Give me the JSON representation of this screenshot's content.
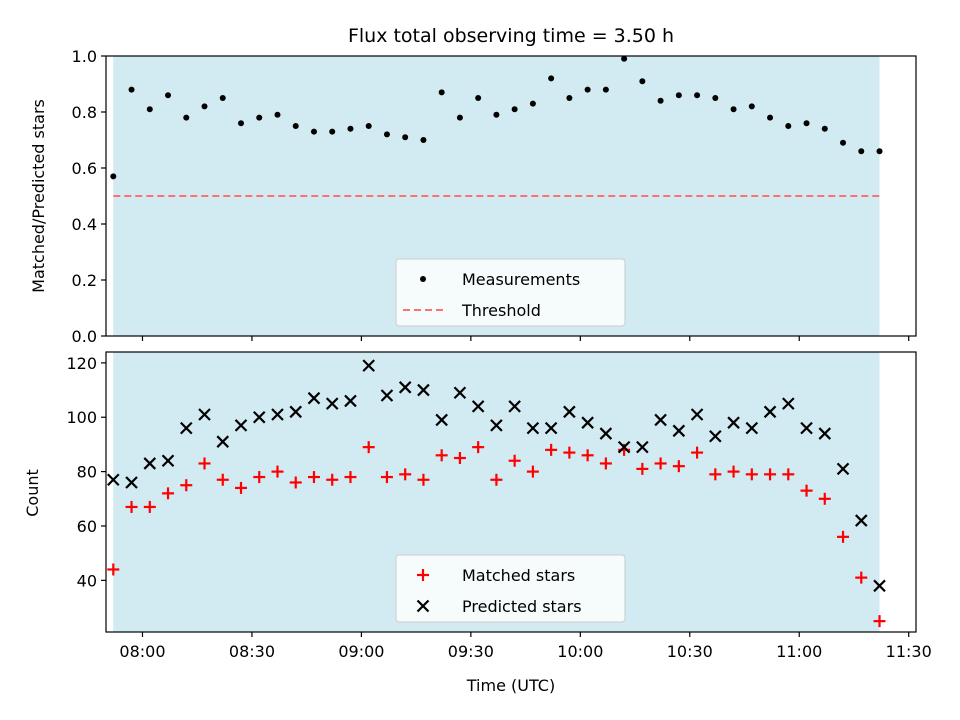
{
  "chart_data": [
    {
      "type": "scatter",
      "title": "Flux total observing time = 3.50 h",
      "xlabel": "",
      "ylabel": "Matched/Predicted stars",
      "xlim": [
        "07:50",
        "11:32"
      ],
      "ylim": [
        0,
        1.0
      ],
      "yticks": [
        "0.0",
        "0.2",
        "0.4",
        "0.6",
        "0.8",
        "1.0"
      ],
      "shaded_span": [
        "07:52",
        "11:22"
      ],
      "legend_position": "lower center",
      "series": [
        {
          "name": "Measurements",
          "marker": "dot",
          "color": "#000000",
          "x": [
            "07:52",
            "07:57",
            "08:02",
            "08:07",
            "08:12",
            "08:17",
            "08:22",
            "08:27",
            "08:32",
            "08:37",
            "08:42",
            "08:47",
            "08:52",
            "08:57",
            "09:02",
            "09:07",
            "09:12",
            "09:17",
            "09:22",
            "09:27",
            "09:32",
            "09:37",
            "09:42",
            "09:47",
            "09:52",
            "09:57",
            "10:02",
            "10:07",
            "10:12",
            "10:17",
            "10:22",
            "10:27",
            "10:32",
            "10:37",
            "10:42",
            "10:47",
            "10:52",
            "10:57",
            "11:02",
            "11:07",
            "11:12",
            "11:17",
            "11:22"
          ],
          "y": [
            0.57,
            0.88,
            0.81,
            0.86,
            0.78,
            0.82,
            0.85,
            0.76,
            0.78,
            0.79,
            0.75,
            0.73,
            0.73,
            0.74,
            0.75,
            0.72,
            0.71,
            0.7,
            0.87,
            0.78,
            0.85,
            0.79,
            0.81,
            0.83,
            0.92,
            0.85,
            0.88,
            0.88,
            0.99,
            0.91,
            0.84,
            0.86,
            0.86,
            0.85,
            0.81,
            0.82,
            0.78,
            0.75,
            0.76,
            0.74,
            0.69,
            0.66,
            0.66
          ]
        },
        {
          "name": "Threshold",
          "marker": "dashed-line",
          "color": "#ff7070",
          "x": [
            "07:52",
            "11:22"
          ],
          "y": [
            0.5,
            0.5
          ]
        }
      ]
    },
    {
      "type": "scatter",
      "title": "",
      "xlabel": "Time (UTC)",
      "ylabel": "Count",
      "xlim": [
        "07:50",
        "11:32"
      ],
      "ylim": [
        21,
        124
      ],
      "yticks": [
        "40",
        "60",
        "80",
        "100",
        "120"
      ],
      "xticks": [
        "08:00",
        "08:30",
        "09:00",
        "09:30",
        "10:00",
        "10:30",
        "11:00",
        "11:30"
      ],
      "shaded_span": [
        "07:52",
        "11:22"
      ],
      "legend_position": "lower center",
      "series": [
        {
          "name": "Matched stars",
          "marker": "plus",
          "color": "#ff0000",
          "x": [
            "07:52",
            "07:57",
            "08:02",
            "08:07",
            "08:12",
            "08:17",
            "08:22",
            "08:27",
            "08:32",
            "08:37",
            "08:42",
            "08:47",
            "08:52",
            "08:57",
            "09:02",
            "09:07",
            "09:12",
            "09:17",
            "09:22",
            "09:27",
            "09:32",
            "09:37",
            "09:42",
            "09:47",
            "09:52",
            "09:57",
            "10:02",
            "10:07",
            "10:12",
            "10:17",
            "10:22",
            "10:27",
            "10:32",
            "10:37",
            "10:42",
            "10:47",
            "10:52",
            "10:57",
            "11:02",
            "11:07",
            "11:12",
            "11:17",
            "11:22"
          ],
          "y": [
            44,
            67,
            67,
            72,
            75,
            83,
            77,
            74,
            78,
            80,
            76,
            78,
            77,
            78,
            89,
            78,
            79,
            77,
            86,
            85,
            89,
            77,
            84,
            80,
            88,
            87,
            86,
            83,
            88,
            81,
            83,
            82,
            87,
            79,
            80,
            79,
            79,
            79,
            73,
            70,
            56,
            41,
            25
          ]
        },
        {
          "name": "Predicted stars",
          "marker": "x",
          "color": "#000000",
          "x": [
            "07:52",
            "07:57",
            "08:02",
            "08:07",
            "08:12",
            "08:17",
            "08:22",
            "08:27",
            "08:32",
            "08:37",
            "08:42",
            "08:47",
            "08:52",
            "08:57",
            "09:02",
            "09:07",
            "09:12",
            "09:17",
            "09:22",
            "09:27",
            "09:32",
            "09:37",
            "09:42",
            "09:47",
            "09:52",
            "09:57",
            "10:02",
            "10:07",
            "10:12",
            "10:17",
            "10:22",
            "10:27",
            "10:32",
            "10:37",
            "10:42",
            "10:47",
            "10:52",
            "10:57",
            "11:02",
            "11:07",
            "11:12",
            "11:17",
            "11:22"
          ],
          "y": [
            77,
            76,
            83,
            84,
            96,
            101,
            91,
            97,
            100,
            101,
            102,
            107,
            105,
            106,
            119,
            108,
            111,
            110,
            99,
            109,
            104,
            97,
            104,
            96,
            96,
            102,
            98,
            94,
            89,
            89,
            99,
            95,
            101,
            93,
            98,
            96,
            102,
            105,
            96,
            94,
            81,
            62,
            38
          ]
        }
      ]
    }
  ],
  "colors": {
    "shade": "#add8e6",
    "axes": "#000000",
    "background": "#ffffff"
  }
}
